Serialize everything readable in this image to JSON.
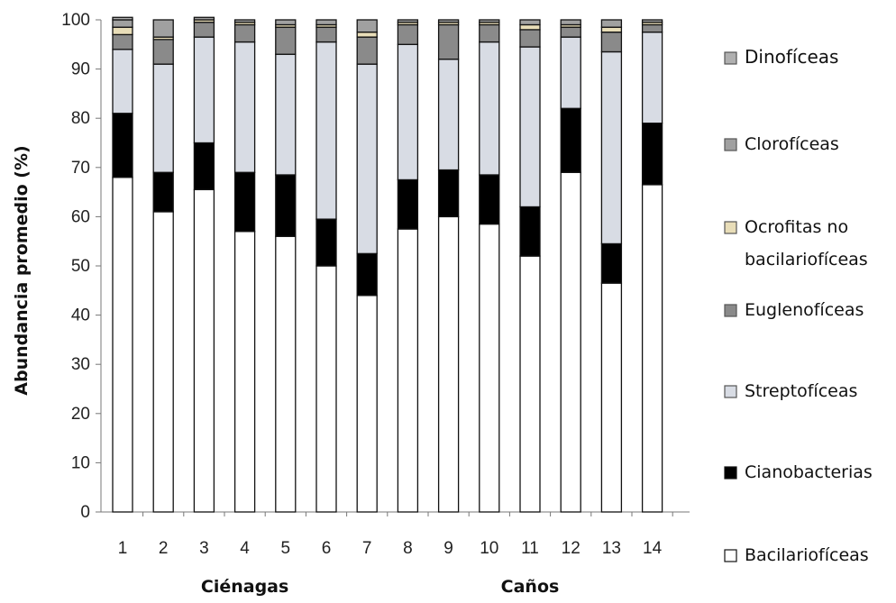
{
  "chart_data": {
    "type": "bar",
    "stacked": true,
    "categories": [
      "1",
      "2",
      "3",
      "4",
      "5",
      "6",
      "7",
      "8",
      "9",
      "10",
      "11",
      "12",
      "13",
      "14"
    ],
    "ylabel": "Abundancia promedio  (%)",
    "ylim": [
      0,
      100
    ],
    "yticks": [
      "0",
      "10",
      "20",
      "30",
      "40",
      "50",
      "60",
      "70",
      "80",
      "90",
      "100"
    ],
    "grid": false,
    "legend_position": "right",
    "groups": [
      {
        "label": "Ciénagas",
        "categories": [
          "1",
          "2",
          "3",
          "4",
          "5",
          "6",
          "7"
        ]
      },
      {
        "label": "Caños",
        "categories": [
          "8",
          "9",
          "10",
          "11",
          "12",
          "13",
          "14"
        ]
      }
    ],
    "series": [
      {
        "name": "Bacilarioficeas",
        "legend_label": "Bacilariofíceas",
        "color": "#ffffff",
        "values": [
          68,
          61,
          65.5,
          57,
          56,
          50,
          44,
          57.5,
          60,
          58.5,
          52,
          69,
          46.5,
          66.5
        ]
      },
      {
        "name": "Cianobacterias",
        "legend_label": "Cianobacterias",
        "color": "#000000",
        "values": [
          13,
          8,
          9.5,
          12,
          12.5,
          9.5,
          8.5,
          10,
          9.5,
          10,
          10,
          13,
          8,
          12.5
        ]
      },
      {
        "name": "Streptoficeas",
        "legend_label": "Streptofíceas",
        "color": "#d8dce4",
        "values": [
          13,
          22,
          21.5,
          26.5,
          24.5,
          36,
          38.5,
          27.5,
          22.5,
          27,
          32.5,
          14.5,
          39,
          18.5
        ]
      },
      {
        "name": "Euglenoficeas",
        "legend_label": "Euglenofíceas",
        "color": "#8a8a8a",
        "values": [
          3,
          5,
          3,
          3.5,
          5.5,
          3,
          5.5,
          4,
          7,
          3.5,
          3.5,
          2,
          4,
          1.5
        ]
      },
      {
        "name": "Ocrofitas no bacilarioficeas",
        "legend_label_lines": [
          "Ocrofitas no",
          "bacilariofíceas"
        ],
        "color": "#e8ddb8",
        "values": [
          1.5,
          0.5,
          0.5,
          0.5,
          0.5,
          0.5,
          1,
          0.5,
          0.5,
          0.5,
          1,
          0.5,
          1,
          0.5
        ]
      },
      {
        "name": "Cloroficeas",
        "legend_label": "Clorofíceas",
        "color": "#a0a0a0",
        "values": [
          1.5,
          3.5,
          0.5,
          0.5,
          1,
          1,
          2.5,
          0.5,
          0.5,
          0.5,
          1,
          1,
          1.5,
          0.5
        ]
      },
      {
        "name": "Dinoficeas",
        "legend_label": "Dinofíceas",
        "color": "#b0b0b0",
        "values": [
          0.5,
          0,
          0,
          0,
          0,
          0,
          0,
          0,
          0,
          0,
          0,
          0,
          0,
          0
        ]
      }
    ]
  }
}
